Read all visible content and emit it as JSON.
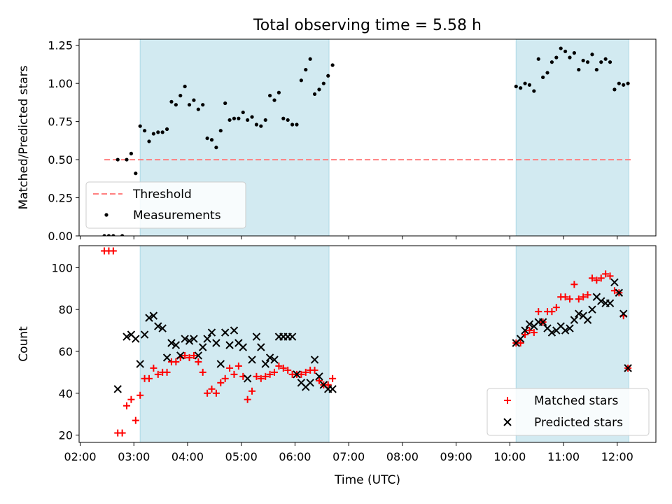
{
  "title": "Total observing time = 5.58 h",
  "shade_color": "#add8e6",
  "chart_data": [
    {
      "type": "scatter",
      "ylabel": "Matched/Predicted stars",
      "xlabel": "",
      "xlim_hours": [
        1.98,
        12.72
      ],
      "ylim": [
        0,
        1.29
      ],
      "yticks": [
        0.0,
        0.25,
        0.5,
        0.75,
        1.0,
        1.25
      ],
      "ytick_labels": [
        "0.00",
        "0.25",
        "0.50",
        "0.75",
        "1.00",
        "1.25"
      ],
      "shaded_spans": [
        [
          "03:07",
          "06:38"
        ],
        [
          "10:07",
          "12:13"
        ]
      ],
      "legend": {
        "placement": "lower-left",
        "entries": [
          "Threshold",
          "Measurements"
        ]
      },
      "threshold": {
        "name": "Threshold",
        "value": 0.5,
        "x_from": "02:27",
        "x_to": "12:15",
        "color": "#ff7f7f",
        "style": "dashed"
      },
      "series": [
        {
          "name": "Measurements",
          "color": "#000000",
          "marker": "dot",
          "points": [
            [
              "02:27",
              0
            ],
            [
              "02:32",
              0
            ],
            [
              "02:37",
              0
            ],
            [
              "02:42",
              0.5
            ],
            [
              "02:47",
              0
            ],
            [
              "02:52",
              0.5
            ],
            [
              "02:57",
              0.54
            ],
            [
              "03:02",
              0.41
            ],
            [
              "03:07",
              0.72
            ],
            [
              "03:12",
              0.69
            ],
            [
              "03:17",
              0.62
            ],
            [
              "03:22",
              0.67
            ],
            [
              "03:27",
              0.68
            ],
            [
              "03:32",
              0.68
            ],
            [
              "03:37",
              0.7
            ],
            [
              "03:42",
              0.88
            ],
            [
              "03:47",
              0.86
            ],
            [
              "03:52",
              0.92
            ],
            [
              "03:57",
              0.98
            ],
            [
              "04:02",
              0.86
            ],
            [
              "04:07",
              0.89
            ],
            [
              "04:12",
              0.83
            ],
            [
              "04:17",
              0.86
            ],
            [
              "04:22",
              0.64
            ],
            [
              "04:27",
              0.63
            ],
            [
              "04:32",
              0.58
            ],
            [
              "04:37",
              0.69
            ],
            [
              "04:42",
              0.87
            ],
            [
              "04:47",
              0.76
            ],
            [
              "04:52",
              0.77
            ],
            [
              "04:57",
              0.77
            ],
            [
              "05:02",
              0.81
            ],
            [
              "05:07",
              0.76
            ],
            [
              "05:12",
              0.78
            ],
            [
              "05:17",
              0.73
            ],
            [
              "05:22",
              0.72
            ],
            [
              "05:27",
              0.76
            ],
            [
              "05:32",
              0.92
            ],
            [
              "05:37",
              0.89
            ],
            [
              "05:42",
              0.94
            ],
            [
              "05:47",
              0.77
            ],
            [
              "05:52",
              0.76
            ],
            [
              "05:57",
              0.73
            ],
            [
              "06:02",
              0.73
            ],
            [
              "06:07",
              1.02
            ],
            [
              "06:12",
              1.09
            ],
            [
              "06:17",
              1.16
            ],
            [
              "06:22",
              0.93
            ],
            [
              "06:27",
              0.96
            ],
            [
              "06:32",
              1.0
            ],
            [
              "06:37",
              1.05
            ],
            [
              "06:42",
              1.12
            ],
            [
              "10:07",
              0.98
            ],
            [
              "10:12",
              0.97
            ],
            [
              "10:17",
              1.0
            ],
            [
              "10:22",
              0.99
            ],
            [
              "10:27",
              0.95
            ],
            [
              "10:32",
              1.16
            ],
            [
              "10:37",
              1.04
            ],
            [
              "10:42",
              1.07
            ],
            [
              "10:47",
              1.14
            ],
            [
              "10:52",
              1.17
            ],
            [
              "10:57",
              1.23
            ],
            [
              "11:02",
              1.21
            ],
            [
              "11:07",
              1.17
            ],
            [
              "11:12",
              1.2
            ],
            [
              "11:17",
              1.09
            ],
            [
              "11:22",
              1.15
            ],
            [
              "11:27",
              1.14
            ],
            [
              "11:32",
              1.19
            ],
            [
              "11:37",
              1.09
            ],
            [
              "11:42",
              1.14
            ],
            [
              "11:47",
              1.16
            ],
            [
              "11:52",
              1.14
            ],
            [
              "11:57",
              0.96
            ],
            [
              "12:02",
              1.0
            ],
            [
              "12:07",
              0.99
            ],
            [
              "12:12",
              1.0
            ]
          ]
        }
      ]
    },
    {
      "type": "scatter",
      "ylabel": "Count",
      "xlabel": "Time (UTC)",
      "xlim_hours": [
        1.98,
        12.72
      ],
      "ylim": [
        16.5,
        110.5
      ],
      "yticks": [
        20,
        40,
        60,
        80,
        100
      ],
      "ytick_labels": [
        "20",
        "40",
        "60",
        "80",
        "100"
      ],
      "xticks": [
        "02:00",
        "03:00",
        "04:00",
        "05:00",
        "06:00",
        "07:00",
        "08:00",
        "09:00",
        "10:00",
        "11:00",
        "12:00"
      ],
      "shaded_spans": [
        [
          "03:07",
          "06:38"
        ],
        [
          "10:07",
          "12:13"
        ]
      ],
      "legend": {
        "placement": "lower-right",
        "entries": [
          "Matched stars",
          "Predicted stars"
        ]
      },
      "series": [
        {
          "name": "Matched stars",
          "color": "#ff0000",
          "marker": "plus",
          "points": [
            [
              "02:27",
              108
            ],
            [
              "02:32",
              108
            ],
            [
              "02:37",
              108
            ],
            [
              "02:42",
              21
            ],
            [
              "02:47",
              21
            ],
            [
              "02:52",
              34
            ],
            [
              "02:57",
              37
            ],
            [
              "03:02",
              27
            ],
            [
              "03:07",
              39
            ],
            [
              "03:12",
              47
            ],
            [
              "03:17",
              47
            ],
            [
              "03:22",
              52
            ],
            [
              "03:27",
              49
            ],
            [
              "03:32",
              50
            ],
            [
              "03:37",
              50
            ],
            [
              "03:42",
              55
            ],
            [
              "03:47",
              55
            ],
            [
              "03:52",
              57
            ],
            [
              "03:57",
              58
            ],
            [
              "04:02",
              57
            ],
            [
              "04:07",
              58
            ],
            [
              "04:12",
              55
            ],
            [
              "04:17",
              50
            ],
            [
              "04:22",
              40
            ],
            [
              "04:27",
              42
            ],
            [
              "04:32",
              40
            ],
            [
              "04:37",
              45
            ],
            [
              "04:42",
              47
            ],
            [
              "04:47",
              52
            ],
            [
              "04:52",
              49
            ],
            [
              "04:57",
              53
            ],
            [
              "05:02",
              48
            ],
            [
              "05:07",
              37
            ],
            [
              "05:12",
              41
            ],
            [
              "05:17",
              48
            ],
            [
              "05:22",
              47
            ],
            [
              "05:27",
              48
            ],
            [
              "05:32",
              49
            ],
            [
              "05:37",
              50
            ],
            [
              "05:42",
              53
            ],
            [
              "05:47",
              52
            ],
            [
              "05:52",
              51
            ],
            [
              "05:57",
              49
            ],
            [
              "06:02",
              49
            ],
            [
              "06:07",
              49
            ],
            [
              "06:12",
              50
            ],
            [
              "06:17",
              51
            ],
            [
              "06:22",
              51
            ],
            [
              "06:27",
              46
            ],
            [
              "06:32",
              44
            ],
            [
              "06:37",
              44
            ],
            [
              "06:42",
              47
            ],
            [
              "10:07",
              64
            ],
            [
              "10:12",
              64
            ],
            [
              "10:17",
              68
            ],
            [
              "10:22",
              70
            ],
            [
              "10:27",
              69
            ],
            [
              "10:32",
              79
            ],
            [
              "10:37",
              74
            ],
            [
              "10:42",
              79
            ],
            [
              "10:47",
              79
            ],
            [
              "10:52",
              81
            ],
            [
              "10:57",
              86
            ],
            [
              "11:02",
              86
            ],
            [
              "11:07",
              85
            ],
            [
              "11:12",
              92
            ],
            [
              "11:17",
              85
            ],
            [
              "11:22",
              86
            ],
            [
              "11:27",
              87
            ],
            [
              "11:32",
              95
            ],
            [
              "11:37",
              94
            ],
            [
              "11:42",
              95
            ],
            [
              "11:47",
              97
            ],
            [
              "11:52",
              96
            ],
            [
              "11:57",
              89
            ],
            [
              "12:02",
              88
            ],
            [
              "12:07",
              77
            ],
            [
              "12:12",
              52
            ]
          ]
        },
        {
          "name": "Predicted stars",
          "color": "#000000",
          "marker": "x",
          "points": [
            [
              "02:42",
              42
            ],
            [
              "02:52",
              67
            ],
            [
              "02:57",
              68
            ],
            [
              "03:02",
              66
            ],
            [
              "03:07",
              54
            ],
            [
              "03:12",
              68
            ],
            [
              "03:17",
              76
            ],
            [
              "03:22",
              77
            ],
            [
              "03:27",
              72
            ],
            [
              "03:32",
              71
            ],
            [
              "03:37",
              57
            ],
            [
              "03:42",
              64
            ],
            [
              "03:47",
              63
            ],
            [
              "03:52",
              58
            ],
            [
              "03:57",
              66
            ],
            [
              "04:02",
              65
            ],
            [
              "04:07",
              66
            ],
            [
              "04:12",
              58
            ],
            [
              "04:17",
              62
            ],
            [
              "04:22",
              66
            ],
            [
              "04:27",
              69
            ],
            [
              "04:32",
              64
            ],
            [
              "04:37",
              54
            ],
            [
              "04:42",
              69
            ],
            [
              "04:47",
              63
            ],
            [
              "04:52",
              70
            ],
            [
              "04:57",
              64
            ],
            [
              "05:02",
              62
            ],
            [
              "05:07",
              47
            ],
            [
              "05:12",
              56
            ],
            [
              "05:17",
              67
            ],
            [
              "05:22",
              62
            ],
            [
              "05:27",
              54
            ],
            [
              "05:32",
              57
            ],
            [
              "05:37",
              56
            ],
            [
              "05:42",
              67
            ],
            [
              "05:47",
              67
            ],
            [
              "05:52",
              67
            ],
            [
              "05:57",
              67
            ],
            [
              "06:02",
              49
            ],
            [
              "06:07",
              45
            ],
            [
              "06:12",
              43
            ],
            [
              "06:17",
              45
            ],
            [
              "06:22",
              56
            ],
            [
              "06:27",
              48
            ],
            [
              "06:32",
              44
            ],
            [
              "06:37",
              42
            ],
            [
              "06:42",
              42
            ],
            [
              "10:07",
              64
            ],
            [
              "10:12",
              66
            ],
            [
              "10:17",
              70
            ],
            [
              "10:22",
              73
            ],
            [
              "10:27",
              72
            ],
            [
              "10:32",
              74
            ],
            [
              "10:37",
              74
            ],
            [
              "10:42",
              71
            ],
            [
              "10:47",
              69
            ],
            [
              "10:52",
              70
            ],
            [
              "10:57",
              72
            ],
            [
              "11:02",
              70
            ],
            [
              "11:07",
              71
            ],
            [
              "11:12",
              75
            ],
            [
              "11:17",
              78
            ],
            [
              "11:22",
              77
            ],
            [
              "11:27",
              75
            ],
            [
              "11:32",
              80
            ],
            [
              "11:37",
              86
            ],
            [
              "11:42",
              84
            ],
            [
              "11:47",
              83
            ],
            [
              "11:52",
              83
            ],
            [
              "11:57",
              93
            ],
            [
              "12:02",
              88
            ],
            [
              "12:07",
              78
            ],
            [
              "12:12",
              52
            ]
          ]
        }
      ]
    }
  ]
}
